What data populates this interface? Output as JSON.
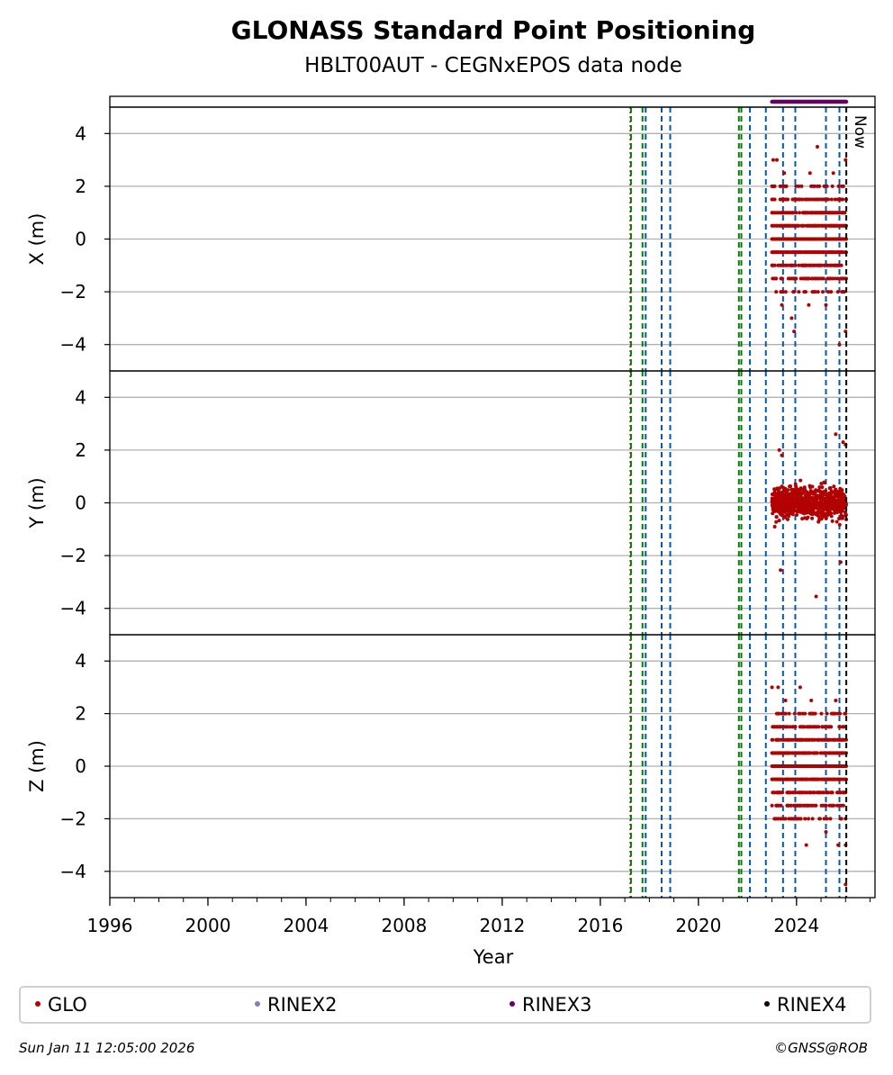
{
  "chart_data": {
    "type": "scatter",
    "title": "GLONASS Standard Point Positioning",
    "subtitle": "HBLT00AUT - CEGNxEPOS data node",
    "xlabel": "Year",
    "xlim": [
      1996,
      2027.2
    ],
    "x_ticks": [
      "1996",
      "2000",
      "2004",
      "2008",
      "2012",
      "2016",
      "2020",
      "2024"
    ],
    "x_tick_values": [
      1996,
      2000,
      2004,
      2008,
      2012,
      2016,
      2020,
      2024
    ],
    "grid": "horizontal",
    "panels": [
      {
        "name": "X",
        "ylabel": "X (m)",
        "ylim": [
          -5,
          5
        ],
        "y_ticks": [
          -4,
          -2,
          0,
          2,
          4
        ],
        "y_tick_labels": [
          "−4",
          "−2",
          "0",
          "2",
          "4"
        ],
        "style": "levels",
        "levels": [
          -2,
          -1.5,
          -1,
          -0.5,
          0,
          0.5,
          1,
          1.5,
          2
        ],
        "outliers": [
          [
            2023.05,
            3.0
          ],
          [
            2023.2,
            3.0
          ],
          [
            2023.5,
            2.5
          ],
          [
            2024.55,
            2.5
          ],
          [
            2024.85,
            3.5
          ],
          [
            2025.5,
            2.5
          ],
          [
            2026.0,
            3.0
          ],
          [
            2023.4,
            -2.5
          ],
          [
            2023.9,
            -3.5
          ],
          [
            2024.5,
            -2.5
          ],
          [
            2025.2,
            -2.5
          ],
          [
            2025.75,
            -4.0
          ],
          [
            2026.0,
            -3.5
          ],
          [
            2023.8,
            -3.0
          ]
        ]
      },
      {
        "name": "Y",
        "ylabel": "Y (m)",
        "ylim": [
          -5,
          5
        ],
        "y_ticks": [
          -4,
          -2,
          0,
          2,
          4
        ],
        "y_tick_labels": [
          "−4",
          "−2",
          "0",
          "2",
          "4"
        ],
        "style": "cloud",
        "outliers": [
          [
            2023.4,
            1.8
          ],
          [
            2025.6,
            2.6
          ],
          [
            2025.9,
            2.3
          ],
          [
            2023.35,
            -2.55
          ],
          [
            2024.8,
            -3.55
          ],
          [
            2025.8,
            -2.25
          ],
          [
            2023.3,
            2.0
          ],
          [
            2026.0,
            2.2
          ]
        ]
      },
      {
        "name": "Z",
        "ylabel": "Z (m)",
        "ylim": [
          -5,
          5
        ],
        "y_ticks": [
          -4,
          -2,
          0,
          2,
          4
        ],
        "y_tick_labels": [
          "−4",
          "−2",
          "0",
          "2",
          "4"
        ],
        "style": "levels",
        "levels": [
          -2,
          -1.5,
          -1,
          -0.5,
          0,
          0.5,
          1,
          1.5,
          2
        ],
        "outliers": [
          [
            2023.0,
            3.0
          ],
          [
            2023.25,
            3.0
          ],
          [
            2023.55,
            2.5
          ],
          [
            2024.15,
            3.0
          ],
          [
            2024.6,
            2.5
          ],
          [
            2025.6,
            2.5
          ],
          [
            2023.1,
            -2.0
          ],
          [
            2024.4,
            -3.0
          ],
          [
            2025.2,
            -2.5
          ],
          [
            2025.7,
            -3.0
          ],
          [
            2026.0,
            -3.0
          ],
          [
            2026.0,
            -4.5
          ]
        ]
      }
    ],
    "glo_range": [
      2023.0,
      2026.03
    ],
    "rinex3_coverage": [
      2023.0,
      2026.03
    ],
    "vertical_events": [
      {
        "x": 2017.23,
        "color": "#cc0000",
        "style": "dotted"
      },
      {
        "x": 2017.25,
        "color": "#008000",
        "style": "dashed"
      },
      {
        "x": 2017.72,
        "color": "#008000",
        "style": "dashed"
      },
      {
        "x": 2017.85,
        "color": "#005ab5",
        "style": "dashed"
      },
      {
        "x": 2018.5,
        "color": "#005ab5",
        "style": "dashed"
      },
      {
        "x": 2018.85,
        "color": "#005ab5",
        "style": "dashed"
      },
      {
        "x": 2021.65,
        "color": "#008000",
        "style": "dashed"
      },
      {
        "x": 2021.75,
        "color": "#008000",
        "style": "dashed"
      },
      {
        "x": 2022.1,
        "color": "#005ab5",
        "style": "dashed"
      },
      {
        "x": 2022.75,
        "color": "#005ab5",
        "style": "dashed"
      },
      {
        "x": 2023.45,
        "color": "#005ab5",
        "style": "dashed"
      },
      {
        "x": 2023.95,
        "color": "#005ab5",
        "style": "dashed"
      },
      {
        "x": 2025.2,
        "color": "#005ab5",
        "style": "dashed"
      },
      {
        "x": 2025.75,
        "color": "#005ab5",
        "style": "dashed"
      }
    ],
    "now": {
      "x": 2026.03,
      "label": "Now"
    },
    "legend": [
      {
        "label": "GLO",
        "color": "#b30000"
      },
      {
        "label": "RINEX2",
        "color": "#8080c0"
      },
      {
        "label": "RINEX3",
        "color": "#660066"
      },
      {
        "label": "RINEX4",
        "color": "#1a0010"
      }
    ]
  },
  "footer": {
    "timestamp": "Sun Jan 11 12:05:00 2026",
    "credit": "©GNSS@ROB"
  }
}
